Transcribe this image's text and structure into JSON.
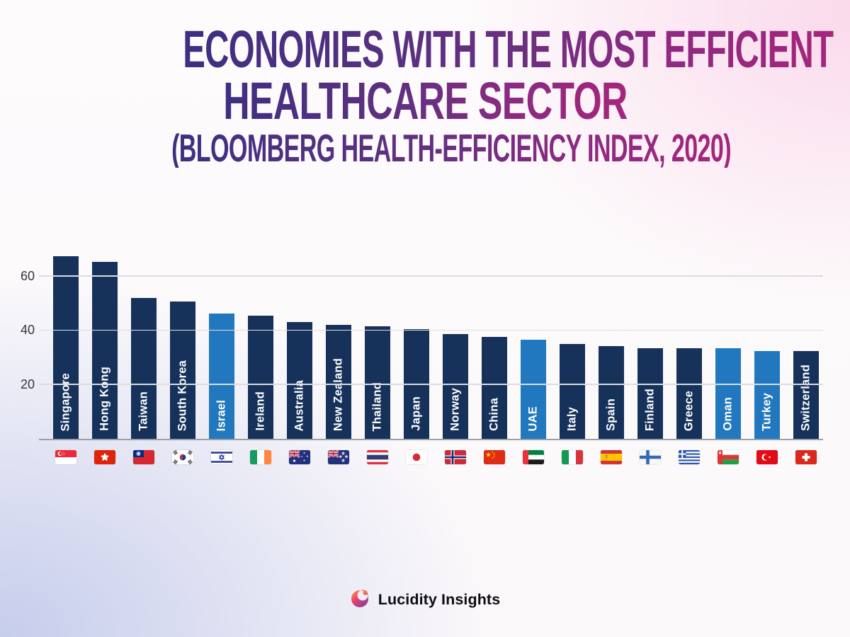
{
  "title": {
    "line1": "ECONOMIES WITH THE MOST EFFICIENT",
    "line2": "HEALTHCARE SECTOR",
    "subtitle": "(BLOOMBERG HEALTH-EFFICIENCY INDEX, 2020)"
  },
  "footer": {
    "brand": "Lucidity Insights"
  },
  "colors": {
    "bar": "#16325b",
    "bar_highlight": "#2178be",
    "gridline": "#dcdce1",
    "baseline": "#9aa0a8",
    "title_gradient_start": "#3d2f82",
    "title_gradient_end": "#a5257b",
    "background_lavender": "#c6cdec",
    "background_pink": "#fad8ea"
  },
  "chart_data": {
    "type": "bar",
    "title": "Economies with the most efficient healthcare sector",
    "subtitle": "Bloomberg Health-Efficiency Index, 2020",
    "grid": true,
    "ylim": [
      0,
      73
    ],
    "yticks": [
      20,
      40,
      60
    ],
    "categories": [
      "Singapore",
      "Hong Kong",
      "Taiwan",
      "South Korea",
      "Israel",
      "Ireland",
      "Australia",
      "New Zealand",
      "Thailand",
      "Japan",
      "Norway",
      "China",
      "UAE",
      "Italy",
      "Spain",
      "Finland",
      "Greece",
      "Oman",
      "Turkey",
      "Switzerland"
    ],
    "values": [
      67.5,
      65.3,
      52.0,
      50.6,
      46.3,
      45.4,
      43.2,
      42.0,
      41.5,
      40.4,
      38.8,
      37.7,
      36.7,
      35.0,
      34.3,
      33.5,
      33.4,
      33.4,
      32.4,
      32.3
    ],
    "highlighted": [
      "Israel",
      "UAE",
      "Oman",
      "Turkey"
    ],
    "flag_codes": [
      "sg",
      "hk",
      "tw",
      "kr",
      "il",
      "ie",
      "au",
      "nz",
      "th",
      "jp",
      "no",
      "cn",
      "ae",
      "it",
      "es",
      "fi",
      "gr",
      "om",
      "tr",
      "ch"
    ],
    "legend": null,
    "bar_color": "#16325b",
    "highlight_color": "#2178be"
  }
}
